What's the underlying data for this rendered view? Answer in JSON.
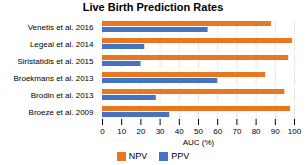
{
  "chart_data": {
    "type": "bar",
    "orientation": "horizontal",
    "title": "Live Birth Prediction Rates",
    "categories": [
      "Venetis et al. 2016",
      "Legeai et al. 2014",
      "Siristatidis et al. 2015",
      "Broekmans et al. 2013",
      "Brodin et al. 2013",
      "Broeze et al. 2009"
    ],
    "series": [
      {
        "name": "NPV",
        "color": "#E87722",
        "values": [
          88,
          99,
          97,
          85,
          95,
          98
        ]
      },
      {
        "name": "PPV",
        "color": "#4472C4",
        "values": [
          55,
          22,
          20,
          60,
          28,
          35
        ]
      }
    ],
    "xlabel": "AUC (%)",
    "xlim": [
      0,
      100
    ],
    "xticks": [
      0,
      10,
      20,
      30,
      40,
      50,
      60,
      70,
      80,
      90,
      100
    ],
    "grid": true,
    "legend": "bottom"
  }
}
